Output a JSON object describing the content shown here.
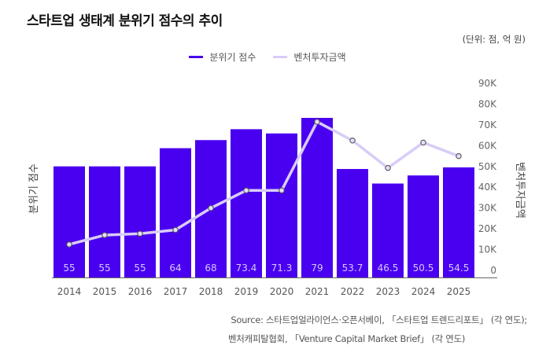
{
  "title": "스타트업 생태계 분위기 점수의 추이",
  "unit_note": "(단위: 점, 억 원)",
  "legend": [
    {
      "label": "분위기 점수",
      "color": "#4a00f0"
    },
    {
      "label": "벤처투자금액",
      "color": "#d9ccf7"
    }
  ],
  "source": {
    "line1": "Source: 스타트업얼라이언스·오픈서베이, 「스타트업 트렌드리포트」 (각 연도);",
    "line2": "벤처캐피탈협회, 「Venture Capital Market Brief」 (각 연도)"
  },
  "chart_data": {
    "type": "bar",
    "title": "스타트업 생태계 분위기 점수의 추이",
    "categories": [
      "2014",
      "2015",
      "2016",
      "2017",
      "2018",
      "2019",
      "2020",
      "2021",
      "2022",
      "2023",
      "2024",
      "2025"
    ],
    "series": [
      {
        "name": "분위기 점수",
        "type": "bar",
        "axis": "left",
        "color": "#4a00f0",
        "values": [
          55,
          55,
          55,
          64,
          68,
          73.4,
          71.3,
          79,
          53.7,
          46.5,
          50.5,
          54.5
        ]
      },
      {
        "name": "벤처투자금액",
        "type": "line",
        "axis": "right",
        "color": "#d9ccf7",
        "values": [
          14000,
          18500,
          19200,
          21000,
          31500,
          40000,
          40000,
          73000,
          64000,
          50800,
          63000,
          56500
        ]
      }
    ],
    "ylabel_left": "분위기 점수",
    "ylabel_right": "벤처투자금액",
    "xlabel": "",
    "ylim_left": [
      0,
      92
    ],
    "ylim_right": [
      0,
      90000
    ],
    "right_ticks": [
      "0",
      "10K",
      "20K",
      "30K",
      "40K",
      "50K",
      "60K",
      "70K",
      "80K",
      "90K"
    ],
    "right_tick_values": [
      0,
      10000,
      20000,
      30000,
      40000,
      50000,
      60000,
      70000,
      80000,
      90000
    ],
    "grid": false,
    "legend_position": "top-center"
  }
}
